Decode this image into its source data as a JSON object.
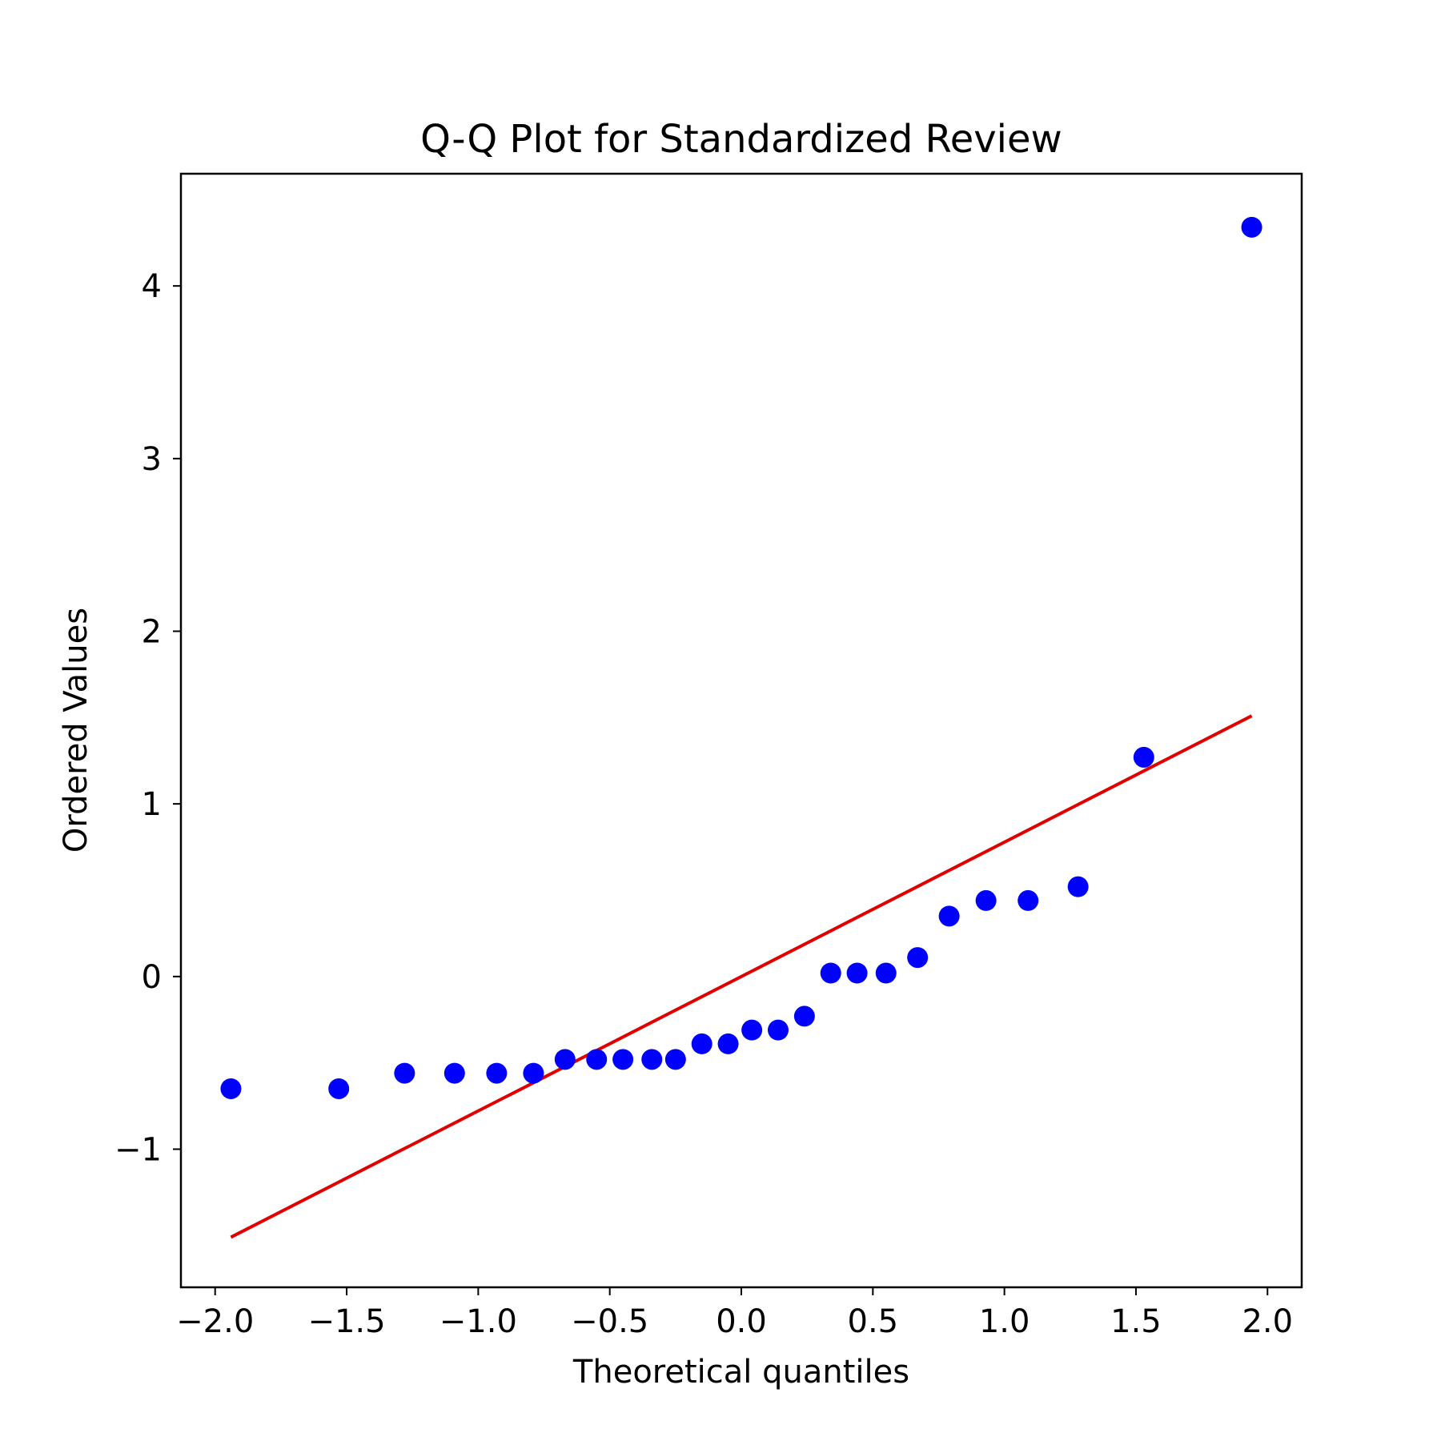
{
  "chart_data": {
    "type": "scatter",
    "title": "Q-Q Plot for Standardized Review",
    "xlabel": "Theoretical quantiles",
    "ylabel": "Ordered Values",
    "xlim": [
      -2.13,
      2.13
    ],
    "ylim": [
      -1.8,
      4.65
    ],
    "grid": false,
    "x_ticks": [
      -2.0,
      -1.5,
      -1.0,
      -0.5,
      0.0,
      0.5,
      1.0,
      1.5,
      2.0
    ],
    "x_tick_labels": [
      "−2.0",
      "−1.5",
      "−1.0",
      "−0.5",
      "0.0",
      "0.5",
      "1.0",
      "1.5",
      "2.0"
    ],
    "y_ticks": [
      -1,
      0,
      1,
      2,
      3,
      4
    ],
    "y_tick_labels": [
      "−1",
      "0",
      "1",
      "2",
      "3",
      "4"
    ],
    "series": [
      {
        "kind": "points",
        "color": "#0000ff",
        "points": [
          [
            -1.94,
            -0.65
          ],
          [
            -1.53,
            -0.65
          ],
          [
            -1.28,
            -0.56
          ],
          [
            -1.09,
            -0.56
          ],
          [
            -0.93,
            -0.56
          ],
          [
            -0.79,
            -0.56
          ],
          [
            -0.67,
            -0.48
          ],
          [
            -0.55,
            -0.48
          ],
          [
            -0.45,
            -0.48
          ],
          [
            -0.34,
            -0.48
          ],
          [
            -0.25,
            -0.48
          ],
          [
            -0.15,
            -0.39
          ],
          [
            -0.05,
            -0.39
          ],
          [
            0.04,
            -0.31
          ],
          [
            0.14,
            -0.31
          ],
          [
            0.24,
            -0.23
          ],
          [
            0.34,
            0.02
          ],
          [
            0.44,
            0.02
          ],
          [
            0.55,
            0.02
          ],
          [
            0.67,
            0.11
          ],
          [
            0.79,
            0.35
          ],
          [
            0.93,
            0.44
          ],
          [
            1.09,
            0.44
          ],
          [
            1.28,
            0.52
          ],
          [
            1.53,
            1.27
          ],
          [
            1.94,
            4.34
          ]
        ]
      },
      {
        "kind": "fit-line",
        "color": "#e00000",
        "points": [
          [
            -1.94,
            -1.51
          ],
          [
            1.94,
            1.51
          ]
        ]
      }
    ]
  }
}
